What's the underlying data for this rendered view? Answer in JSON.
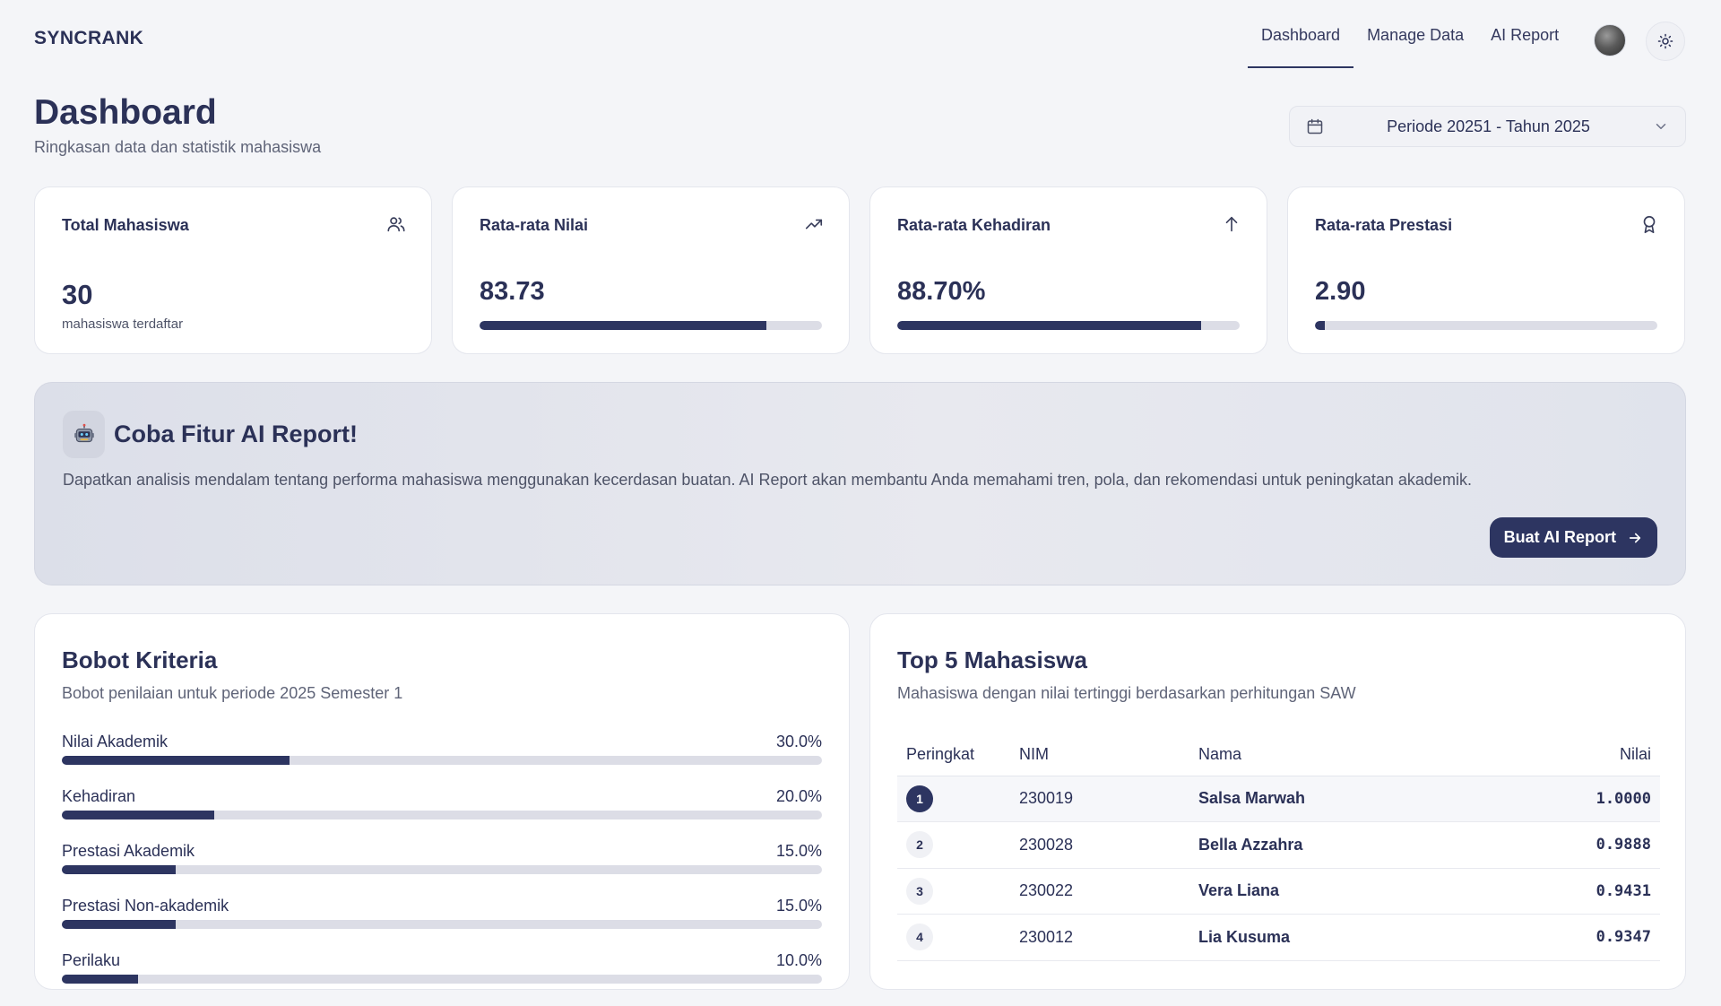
{
  "brand": "SYNCRANK",
  "nav": {
    "links": [
      {
        "label": "Dashboard"
      },
      {
        "label": "Manage Data"
      },
      {
        "label": "AI Report"
      }
    ]
  },
  "header": {
    "title": "Dashboard",
    "subtitle": "Ringkasan data dan statistik mahasiswa",
    "period": "Periode 20251 - Tahun 2025"
  },
  "stats": {
    "total": {
      "title": "Total Mahasiswa",
      "value": "30",
      "note": "mahasiswa terdaftar",
      "icon": "users-icon"
    },
    "nilai": {
      "title": "Rata-rata Nilai",
      "value": "83.73",
      "fraction": 0.8373,
      "icon": "trending-up-icon"
    },
    "kehadiran": {
      "title": "Rata-rata Kehadiran",
      "value": "88.70%",
      "fraction": 0.887,
      "icon": "arrow-up-icon"
    },
    "prestasi": {
      "title": "Rata-rata Prestasi",
      "value": "2.90",
      "fraction": 0.029,
      "icon": "award-icon"
    }
  },
  "ai_banner": {
    "heading": "Coba Fitur AI Report!",
    "description": "Dapatkan analisis mendalam tentang performa mahasiswa menggunakan kecerdasan buatan. AI Report akan membantu Anda memahami tren, pola, dan rekomendasi untuk peningkatan akademik.",
    "button": "Buat AI Report",
    "icon": "robot-icon"
  },
  "criteria": {
    "title": "Bobot Kriteria",
    "subtitle": "Bobot penilaian untuk periode 2025 Semester 1",
    "items": [
      {
        "name": "Nilai Akademik",
        "pct": "30.0%",
        "value": 30.0
      },
      {
        "name": "Kehadiran",
        "pct": "20.0%",
        "value": 20.0
      },
      {
        "name": "Prestasi Akademik",
        "pct": "15.0%",
        "value": 15.0
      },
      {
        "name": "Prestasi Non-akademik",
        "pct": "15.0%",
        "value": 15.0
      },
      {
        "name": "Perilaku",
        "pct": "10.0%",
        "value": 10.0
      }
    ]
  },
  "top5": {
    "title": "Top 5 Mahasiswa",
    "subtitle": "Mahasiswa dengan nilai tertinggi berdasarkan perhitungan SAW",
    "columns": [
      "Peringkat",
      "NIM",
      "Nama",
      "Nilai"
    ],
    "rows": [
      {
        "rank": "1",
        "nim": "230019",
        "name": "Salsa Marwah",
        "score": "1.0000"
      },
      {
        "rank": "2",
        "nim": "230028",
        "name": "Bella Azzahra",
        "score": "0.9888"
      },
      {
        "rank": "3",
        "nim": "230022",
        "name": "Vera Liana",
        "score": "0.9431"
      },
      {
        "rank": "4",
        "nim": "230012",
        "name": "Lia Kusuma",
        "score": "0.9347"
      }
    ]
  },
  "colors": {
    "primary": "#2d3561",
    "track": "#dcdde6",
    "background": "#f4f5f8"
  }
}
